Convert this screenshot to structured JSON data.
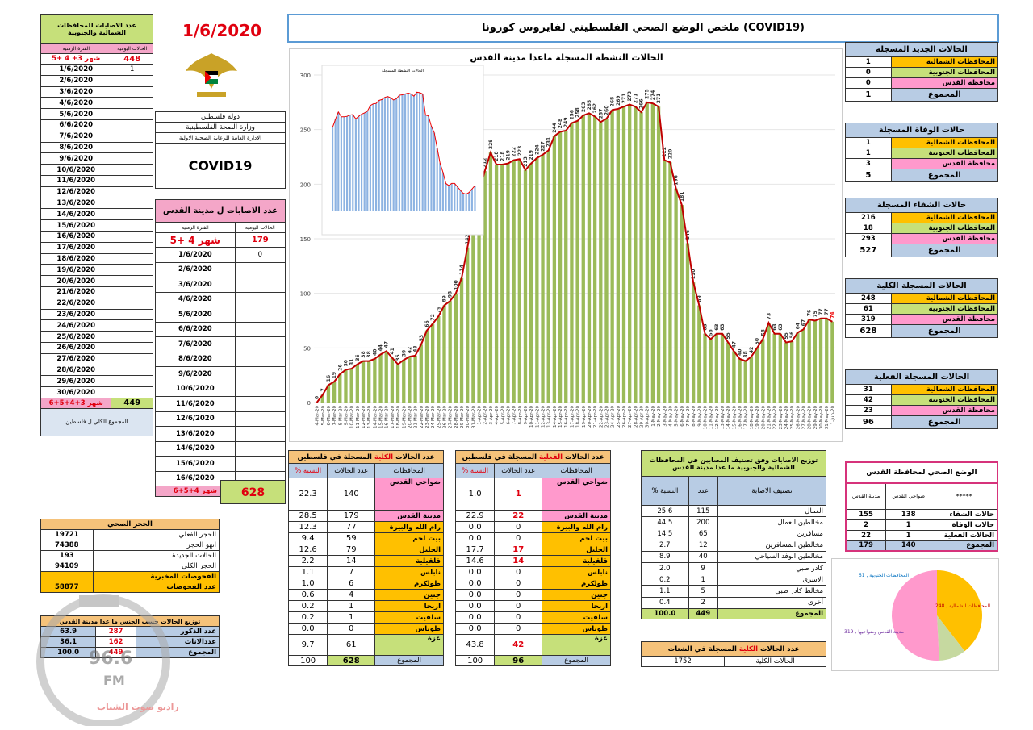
{
  "header": {
    "title": "ملخص الوضع الصحي الفلسطيني لفايروس كورونا (COVID19)",
    "date": "1/6/2020",
    "state": "دولة فلسطين",
    "ministry": "وزارة الصحة الفلسطينية",
    "department": "الادارة العامة للرعاية الصحية الاولية",
    "covid": "COVID19"
  },
  "north_south_daily": {
    "title": "عدد الاصابات للمحافظات الشمالية والجنوبية",
    "col_period": "الفترة الزمنية",
    "col_daily": "الحالات اليومية",
    "first_row": {
      "period": "شهر 3+ 4 +5",
      "value": "448"
    },
    "dates": [
      "1/6/2020",
      "2/6/2020",
      "3/6/2020",
      "4/6/2020",
      "5/6/2020",
      "6/6/2020",
      "7/6/2020",
      "8/6/2020",
      "9/6/2020",
      "10/6/2020",
      "11/6/2020",
      "12/6/2020",
      "13/6/2020",
      "14/6/2020",
      "15/6/2020",
      "16/6/2020",
      "17/6/2020",
      "18/6/2020",
      "19/6/2020",
      "20/6/2020",
      "21/6/2020",
      "22/6/2020",
      "23/6/2020",
      "24/6/2020",
      "25/6/2020",
      "26/6/2020",
      "27/6/2020",
      "28/6/2020",
      "29/6/2020",
      "30/6/2020"
    ],
    "values": [
      "1",
      "",
      "",
      "",
      "",
      "",
      "",
      "",
      "",
      "",
      "",
      "",
      "",
      "",
      "",
      "",
      "",
      "",
      "",
      "",
      "",
      "",
      "",
      "",
      "",
      "",
      "",
      "",
      "",
      ""
    ],
    "total_label": "شهر 3+4+5+6",
    "total_value": "449"
  },
  "jerusalem_daily": {
    "title": "عدد الاصابات ل مدينة القدس",
    "col_period": "الفترة الزمنية",
    "col_daily": "الحالات اليومية",
    "first_row": {
      "period": "شهر 4 +5",
      "value": "179"
    },
    "dates": [
      "1/6/2020",
      "2/6/2020",
      "3/6/2020",
      "4/6/2020",
      "5/6/2020",
      "6/6/2020",
      "7/6/2020",
      "8/6/2020",
      "9/6/2020",
      "10/6/2020",
      "11/6/2020",
      "12/6/2020",
      "13/6/2020",
      "14/6/2020",
      "15/6/2020",
      "16/6/2020"
    ],
    "values": [
      "0",
      "",
      "",
      "",
      "",
      "",
      "",
      "",
      "",
      "",
      "",
      "",
      "",
      "",
      "",
      ""
    ],
    "total_label": "شهر 4+5+6",
    "total_value": "179"
  },
  "grand_total": {
    "label": "المجموع الكلي ل فلسطين",
    "value": "628"
  },
  "quarantine": {
    "title": "الحجر الصحي",
    "rows": [
      {
        "label": "الحجر الفعلي",
        "value": "19721"
      },
      {
        "label": "انهو الحجر",
        "value": "74388"
      },
      {
        "label": "الحالات الجديدة",
        "value": "193"
      },
      {
        "label": "الحجر الكلي",
        "value": "94109"
      },
      {
        "label": "الفحوصات المخبرية",
        "value": ""
      },
      {
        "label": "عدد الفحوصات",
        "value": "58877"
      }
    ]
  },
  "gender": {
    "title": "توزيع الحالات حسب الجنس ما عدا مدينة القدس",
    "rows": [
      {
        "label": "عدد الذكور",
        "count": "287",
        "pct": "63.9"
      },
      {
        "label": "عددالاناث",
        "count": "162",
        "pct": "36.1"
      },
      {
        "label": "المجموع",
        "count": "449",
        "pct": "100.0"
      }
    ]
  },
  "watermark": {
    "freq": "96.6",
    "fm": "FM",
    "name": "راديو صوت الشباب"
  },
  "chart_data": {
    "type": "line",
    "title": "الحالات النشطة المسجلة ماعدا مدينة القدس",
    "x": [
      "4-Mar-20",
      "5-Mar-20",
      "6-Mar-20",
      "7-Mar-20",
      "8-Mar-20",
      "9-Mar-20",
      "10-Mar-20",
      "11-Mar-20",
      "12-Mar-20",
      "13-Mar-20",
      "14-Mar-20",
      "15-Mar-20",
      "16-Mar-20",
      "17-Mar-20",
      "18-Mar-20",
      "19-Mar-20",
      "20-Mar-20",
      "21-Mar-20",
      "22-Mar-20",
      "23-Mar-20",
      "24-Mar-20",
      "25-Mar-20",
      "26-Mar-20",
      "27-Mar-20",
      "28-Mar-20",
      "29-Mar-20",
      "30-Mar-20",
      "31-Mar-20",
      "1-Apr-20",
      "2-Apr-20",
      "3-Apr-20",
      "4-Apr-20",
      "5-Apr-20",
      "6-Apr-20",
      "7-Apr-20",
      "8-Apr-20",
      "9-Apr-20",
      "10-Apr-20",
      "11-Apr-20",
      "12-Apr-20",
      "13-Apr-20",
      "14-Apr-20",
      "15-Apr-20",
      "16-Apr-20",
      "17-Apr-20",
      "18-Apr-20",
      "19-Apr-20",
      "20-Apr-20",
      "21-Apr-20",
      "22-Apr-20",
      "23-Apr-20",
      "24-Apr-20",
      "25-Apr-20",
      "26-Apr-20",
      "27-Apr-20",
      "28-Apr-20",
      "29-Apr-20",
      "30-Apr-20",
      "1-May-20",
      "2-May-20",
      "3-May-20",
      "4-May-20",
      "5-May-20",
      "6-May-20",
      "7-May-20",
      "8-May-20",
      "9-May-20",
      "10-May-20",
      "11-May-20",
      "12-May-20",
      "13-May-20",
      "14-May-20",
      "15-May-20",
      "16-May-20",
      "17-May-20",
      "18-May-20",
      "19-May-20",
      "20-May-20",
      "21-May-20",
      "22-May-20",
      "23-May-20",
      "24-May-20",
      "25-May-20",
      "26-May-20",
      "27-May-20",
      "28-May-20",
      "29-May-20",
      "30-May-20",
      "31-May-20",
      "1-Jun-20"
    ],
    "values": [
      0,
      7,
      16,
      19,
      26,
      30,
      31,
      35,
      38,
      38,
      40,
      44,
      47,
      41,
      35,
      39,
      42,
      43,
      53,
      66,
      72,
      79,
      89,
      93,
      100,
      114,
      142,
      170,
      193,
      212,
      229,
      218,
      218,
      219,
      222,
      223,
      213,
      219,
      224,
      227,
      231,
      244,
      248,
      249,
      256,
      258,
      263,
      265,
      262,
      257,
      260,
      268,
      269,
      271,
      273,
      271,
      266,
      275,
      274,
      271,
      222,
      220,
      196,
      181,
      146,
      110,
      89,
      63,
      58,
      63,
      63,
      55,
      47,
      40,
      38,
      42,
      50,
      58,
      73,
      63,
      63,
      55,
      56,
      64,
      67,
      76,
      75,
      77,
      77,
      74
    ],
    "ylim": [
      0,
      300
    ],
    "yticks": [
      0,
      50,
      100,
      150,
      200,
      250,
      300
    ],
    "mini_title": "الحالات النشطة المسجلة"
  },
  "new_cases": {
    "title": "الحالات الجديد المسجلة",
    "rows": [
      {
        "label": "المحافظات الشمالية",
        "value": "1"
      },
      {
        "label": "المحافظات الجنوبية",
        "value": "0"
      },
      {
        "label": "محافظة القدس",
        "value": "0"
      }
    ],
    "total_label": "المجموع",
    "total": "1"
  },
  "deaths": {
    "title": "حالات الوفاة المسجلة",
    "rows": [
      {
        "label": "المحافظات الشمالية",
        "value": "1"
      },
      {
        "label": "المحافظات الجنوبية",
        "value": "1"
      },
      {
        "label": "محافظة القدس",
        "value": "3"
      }
    ],
    "total_label": "المجموع",
    "total": "5"
  },
  "recovered": {
    "title": "حالات الشفاء المسجلة",
    "rows": [
      {
        "label": "المحافظات الشمالية",
        "value": "216"
      },
      {
        "label": "المحافظات الجنوبية",
        "value": "18"
      },
      {
        "label": "محافظة القدس",
        "value": "293"
      }
    ],
    "total_label": "المجموع",
    "total": "527"
  },
  "total_cases": {
    "title": "الحالات المسجلة الكلية",
    "rows": [
      {
        "label": "المحافظات الشمالية",
        "value": "248"
      },
      {
        "label": "المحافظات الجنوبية",
        "value": "61"
      },
      {
        "label": "محافظة القدس",
        "value": "319"
      }
    ],
    "total_label": "المجموع",
    "total": "628"
  },
  "active_cases": {
    "title": "الحالات المسجلة الفعلية",
    "rows": [
      {
        "label": "المحافظات الشمالية",
        "value": "31"
      },
      {
        "label": "المحافظات الجنوبية",
        "value": "42"
      },
      {
        "label": "محافظة القدس",
        "value": "23"
      }
    ],
    "total_label": "المجموع",
    "total": "96"
  },
  "jerusalem_status": {
    "title": "الوضع الصحي لمحافظة القدس",
    "cols": [
      "*****",
      "ضواحي القدس",
      "مدينة القدس"
    ],
    "rows": [
      {
        "label": "حالات الشفاء",
        "a": "138",
        "b": "155"
      },
      {
        "label": "حالات الوفاة",
        "a": "1",
        "b": "2"
      },
      {
        "label": "الحالات الفعلية",
        "a": "1",
        "b": "22"
      },
      {
        "label": "المجموع",
        "a": "140",
        "b": "179"
      }
    ]
  },
  "pie": {
    "labels": [
      "المحافظات الشمالية , 248",
      "المحافظات الجنوبية , 61",
      "مدينة القدس وضواحيها , 319"
    ],
    "values": [
      248,
      61,
      319
    ],
    "colors": [
      "#ffc000",
      "#c6d9a0",
      "#ff99cc"
    ]
  },
  "total_by_gov": {
    "title_a": "عدد الحالات",
    "title_b": "الكلية",
    "title_c": "المسجلة في فلسطين",
    "col_gov": "المحافظات",
    "col_count": "عدد الحالات",
    "col_pct": "النسبة %",
    "rows": [
      {
        "name": "ضواحي القدس",
        "count": "140",
        "pct": "22.3"
      },
      {
        "name": "مدينة القدس",
        "count": "179",
        "pct": "28.5"
      },
      {
        "name": "رام الله والبيرة",
        "count": "77",
        "pct": "12.3"
      },
      {
        "name": "بيت لحم",
        "count": "59",
        "pct": "9.4"
      },
      {
        "name": "الخليل",
        "count": "79",
        "pct": "12.6"
      },
      {
        "name": "قلقيلية",
        "count": "14",
        "pct": "2.2"
      },
      {
        "name": "نابلس",
        "count": "7",
        "pct": "1.1"
      },
      {
        "name": "طولكرم",
        "count": "6",
        "pct": "1.0"
      },
      {
        "name": "جنين",
        "count": "4",
        "pct": "0.6"
      },
      {
        "name": "اريحا",
        "count": "1",
        "pct": "0.2"
      },
      {
        "name": "سلفيت",
        "count": "1",
        "pct": "0.2"
      },
      {
        "name": "طوباس",
        "count": "0",
        "pct": "0.0"
      },
      {
        "name": "غزة",
        "count": "61",
        "pct": "9.7"
      }
    ],
    "total_label": "المجموع",
    "total_count": "628",
    "total_pct": "100"
  },
  "active_by_gov": {
    "title_a": "عدد الحالات",
    "title_b": "الفعلية",
    "title_c": "المسجلة في فلسطين",
    "col_gov": "المحافظات",
    "col_count": "عدد الحالات",
    "col_pct": "النسبة %",
    "rows": [
      {
        "name": "ضواحي القدس",
        "count": "1",
        "pct": "1.0"
      },
      {
        "name": "مدينة القدس",
        "count": "22",
        "pct": "22.9"
      },
      {
        "name": "رام الله والبيرة",
        "count": "0",
        "pct": "0.0"
      },
      {
        "name": "بيت لحم",
        "count": "0",
        "pct": "0.0"
      },
      {
        "name": "الخليل",
        "count": "17",
        "pct": "17.7"
      },
      {
        "name": "قلقيلية",
        "count": "14",
        "pct": "14.6"
      },
      {
        "name": "نابلس",
        "count": "0",
        "pct": "0.0"
      },
      {
        "name": "طولكرم",
        "count": "0",
        "pct": "0.0"
      },
      {
        "name": "جنين",
        "count": "0",
        "pct": "0.0"
      },
      {
        "name": "اريحا",
        "count": "0",
        "pct": "0.0"
      },
      {
        "name": "سلفيت",
        "count": "0",
        "pct": "0.0"
      },
      {
        "name": "طوباس",
        "count": "0",
        "pct": "0.0"
      },
      {
        "name": "غزة",
        "count": "42",
        "pct": "43.8"
      }
    ],
    "total_label": "المجموع",
    "total_count": "96",
    "total_pct": "100"
  },
  "classification": {
    "title": "توزيع الاصابات وفق تصنيف المصابين في المحافظات الشمالية والجنوبية ما عدا مدينة القدس",
    "col_class": "تصنيف الاصابة",
    "col_count": "عدد",
    "col_pct": "النسبة %",
    "rows": [
      {
        "name": "العمال",
        "count": "115",
        "pct": "25.6"
      },
      {
        "name": "مخالطين العمال",
        "count": "200",
        "pct": "44.5"
      },
      {
        "name": "مسافرين",
        "count": "65",
        "pct": "14.5"
      },
      {
        "name": "مخالطين المسافرين",
        "count": "12",
        "pct": "2.7"
      },
      {
        "name": "مخالطين الوفد السياحي",
        "count": "40",
        "pct": "8.9"
      },
      {
        "name": "كادر طبي",
        "count": "9",
        "pct": "2.0"
      },
      {
        "name": "الاسرى",
        "count": "1",
        "pct": "0.2"
      },
      {
        "name": "مخالط كادر طبي",
        "count": "5",
        "pct": "1.1"
      },
      {
        "name": "أخرى",
        "count": "2",
        "pct": "0.4"
      }
    ],
    "total_label": "المجموع",
    "total_count": "449",
    "total_pct": "100.0"
  },
  "diaspora": {
    "title_a": "عدد الحالات",
    "title_b": "الكلية",
    "title_c": "المسجلة في الشتات",
    "label": "الحالات الكلية",
    "value": "1752"
  }
}
